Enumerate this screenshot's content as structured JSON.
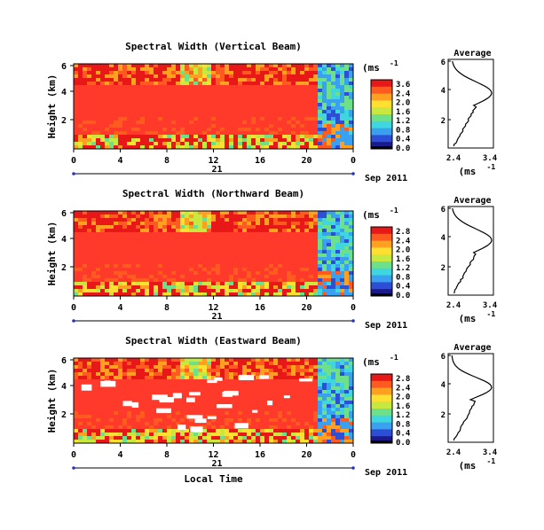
{
  "chart_data": [
    {
      "type": "heatmap",
      "title": "Spectral Width (Vertical Beam)",
      "ylabel": "Height (km)",
      "xlabel": "",
      "x_ticks": [
        "0",
        "4",
        "8",
        "12",
        "16",
        "20",
        "0"
      ],
      "y_ticks": [
        "6",
        "4",
        "2"
      ],
      "date_labels": {
        "day": "21",
        "month_year": "Sep 2011"
      },
      "colorbar": {
        "unit": "(ms",
        "exp": "-1",
        "ticks": [
          "3.6",
          "2.4",
          "2.0",
          "1.6",
          "1.2",
          "0.8",
          "0.4",
          "0.0"
        ]
      },
      "average": {
        "title": "Average",
        "x_ticks": [
          "2.4",
          "3.4"
        ],
        "y_ticks": [
          "6",
          "4",
          "2"
        ],
        "xunit": "(ms",
        "xexp": "-1"
      }
    },
    {
      "type": "heatmap",
      "title": "Spectral Width (Northward Beam)",
      "ylabel": "Height (km)",
      "xlabel": "",
      "x_ticks": [
        "0",
        "4",
        "8",
        "12",
        "16",
        "20",
        "0"
      ],
      "y_ticks": [
        "6",
        "4",
        "2"
      ],
      "date_labels": {
        "day": "21",
        "month_year": "Sep 2011"
      },
      "colorbar": {
        "unit": "(ms",
        "exp": "-1",
        "ticks": [
          "2.8",
          "2.4",
          "2.0",
          "1.6",
          "1.2",
          "0.8",
          "0.4",
          "0.0"
        ]
      },
      "average": {
        "title": "Average",
        "x_ticks": [
          "2.4",
          "3.4"
        ],
        "y_ticks": [
          "6",
          "4",
          "2"
        ],
        "xunit": "(ms",
        "xexp": "-1"
      }
    },
    {
      "type": "heatmap",
      "title": "Spectral Width (Eastward Beam)",
      "ylabel": "Height (km)",
      "xlabel": "Local Time",
      "x_ticks": [
        "0",
        "4",
        "8",
        "12",
        "16",
        "20",
        "0"
      ],
      "y_ticks": [
        "6",
        "4",
        "2"
      ],
      "date_labels": {
        "day": "21",
        "month_year": "Sep 2011"
      },
      "colorbar": {
        "unit": "(ms",
        "exp": "-1",
        "ticks": [
          "2.8",
          "2.4",
          "2.0",
          "1.6",
          "1.2",
          "0.8",
          "0.4",
          "0.0"
        ]
      },
      "average": {
        "title": "Average",
        "x_ticks": [
          "2.4",
          "3.4"
        ],
        "y_ticks": [
          "6",
          "4",
          "2"
        ],
        "xunit": "(ms",
        "xexp": "-1"
      }
    }
  ],
  "colors": {
    "dominant": "#ff3a2a",
    "colormap": [
      "#1a1a8a",
      "#2d4fd6",
      "#3aa0f0",
      "#3fd6e0",
      "#6fe08a",
      "#c8e840",
      "#ffe030",
      "#ffa020",
      "#ff5a20",
      "#e81818"
    ]
  }
}
